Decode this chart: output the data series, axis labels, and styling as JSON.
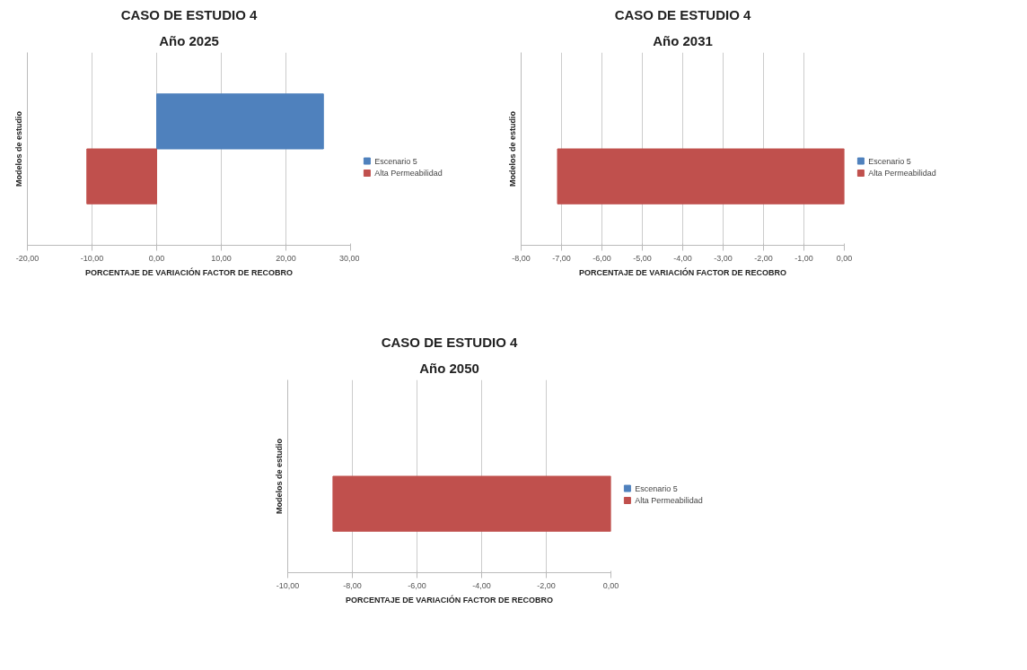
{
  "chart_data": [
    {
      "type": "bar",
      "orientation": "horizontal",
      "title": "CASO DE ESTUDIO 4",
      "subtitle": "Año 2025",
      "xlabel": "PORCENTAJE DE VARIACIÓN FACTOR DE RECOBRO",
      "ylabel": "Modelos de estudio",
      "categories": [
        null
      ],
      "grid": "x",
      "legend": "right",
      "tick_labels": "x",
      "xlim": [
        -20,
        30
      ],
      "xticks": [
        {
          "value": -20,
          "label": "-20,00"
        },
        {
          "value": -10,
          "label": "-10,00"
        },
        {
          "value": 0,
          "label": "0,00"
        },
        {
          "value": 10,
          "label": "10,00"
        },
        {
          "value": 20,
          "label": "20,00"
        },
        {
          "value": 30,
          "label": "30,00"
        }
      ],
      "series": [
        {
          "name": "Escenario 5",
          "color": "#4f81bd",
          "values": [
            25.8
          ]
        },
        {
          "name": "Alta Permeabilidad",
          "color": "#c0504d",
          "values": [
            -10.8
          ]
        }
      ]
    },
    {
      "type": "bar",
      "orientation": "horizontal",
      "title": "CASO DE ESTUDIO 4",
      "subtitle": "Año 2031",
      "xlabel": "PORCENTAJE DE VARIACIÓN FACTOR DE RECOBRO",
      "ylabel": "Modelos de estudio",
      "categories": [
        null
      ],
      "grid": "x",
      "legend": "right",
      "tick_labels": "x",
      "xlim": [
        -8,
        0
      ],
      "xticks": [
        {
          "value": -8,
          "label": "-8,00"
        },
        {
          "value": -7,
          "label": "-7,00"
        },
        {
          "value": -6,
          "label": "-6,00"
        },
        {
          "value": -5,
          "label": "-5,00"
        },
        {
          "value": -4,
          "label": "-4,00"
        },
        {
          "value": -3,
          "label": "-3,00"
        },
        {
          "value": -2,
          "label": "-2,00"
        },
        {
          "value": -1,
          "label": "-1,00"
        },
        {
          "value": 0,
          "label": "0,00"
        }
      ],
      "series": [
        {
          "name": "Escenario 5",
          "color": "#4f81bd",
          "values": [
            null
          ]
        },
        {
          "name": "Alta Permeabilidad",
          "color": "#c0504d",
          "values": [
            -7.1
          ]
        }
      ]
    },
    {
      "type": "bar",
      "orientation": "horizontal",
      "title": "CASO DE ESTUDIO 4",
      "subtitle": "Año 2050",
      "xlabel": "PORCENTAJE DE VARIACIÓN FACTOR DE RECOBRO",
      "ylabel": "Modelos de estudio",
      "categories": [
        null
      ],
      "grid": "x",
      "legend": "right",
      "tick_labels": "x",
      "xlim": [
        -10,
        0
      ],
      "xticks": [
        {
          "value": -10,
          "label": "-10,00"
        },
        {
          "value": -8,
          "label": "-8,00"
        },
        {
          "value": -6,
          "label": "-6,00"
        },
        {
          "value": -4,
          "label": "-4,00"
        },
        {
          "value": -2,
          "label": "-2,00"
        },
        {
          "value": 0,
          "label": "0,00"
        }
      ],
      "series": [
        {
          "name": "Escenario 5",
          "color": "#4f81bd",
          "values": [
            null
          ]
        },
        {
          "name": "Alta Permeabilidad",
          "color": "#c0504d",
          "values": [
            -8.6
          ]
        }
      ]
    }
  ]
}
